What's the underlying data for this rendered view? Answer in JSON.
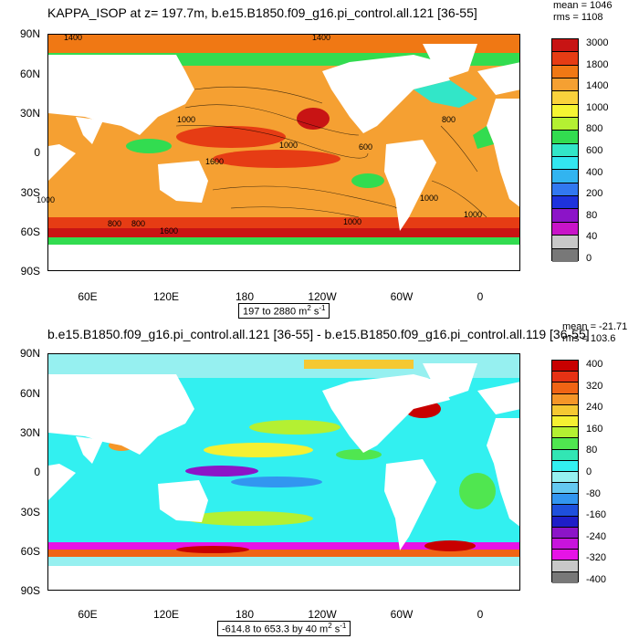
{
  "panel1": {
    "title": "KAPPA_ISOP at z= 197.7m, b.e15.B1850.f09_g16.pi_control.all.121 [36-55]",
    "mean": "mean = 1046",
    "rms": "rms = 1108",
    "range_text": "197 to 2880 m",
    "range_unit_sup": "2",
    "range_unit_tail": " s",
    "range_unit_sup2": "-1",
    "contour_labels": [
      "1400",
      "1400",
      "1000",
      "800",
      "1600",
      "1000",
      "800",
      "600",
      "1000",
      "1000",
      "800",
      "1600",
      "1000",
      "1000"
    ],
    "colorbar_labels": [
      "3000",
      "1800",
      "1400",
      "1000",
      "800",
      "600",
      "400",
      "200",
      "80",
      "40",
      "0"
    ],
    "colorbar_colors": [
      "#c81414",
      "#e63c14",
      "#f07814",
      "#f5a032",
      "#fad23c",
      "#f5f532",
      "#b4f032",
      "#32dc50",
      "#32e6c8",
      "#32e6f0",
      "#32b4f0",
      "#3278f0",
      "#1e32dc",
      "#8c14c8",
      "#c814c8",
      "#c8c8c8",
      "#787878"
    ]
  },
  "panel2": {
    "title": "b.e15.B1850.f09_g16.pi_control.all.121 [36-55] - b.e15.B1850.f09_g16.pi_control.all.119 [36-55]",
    "mean": "mean = -21.71",
    "rms": "rms = 103.6",
    "range_text": "-614.8 to 653.3 by 40 m",
    "range_unit_sup": "2",
    "range_unit_tail": " s",
    "range_unit_sup2": "-1",
    "colorbar_labels": [
      "400",
      "320",
      "240",
      "160",
      "80",
      "0",
      "-80",
      "-160",
      "-240",
      "-320",
      "-400"
    ],
    "colorbar_colors": [
      "#c80000",
      "#e63214",
      "#f06414",
      "#f59628",
      "#f5c832",
      "#f5f032",
      "#b4f032",
      "#50e650",
      "#32e6b4",
      "#32f0f0",
      "#96f0f0",
      "#64c8f0",
      "#3296f0",
      "#1e50dc",
      "#1e1ec8",
      "#8c14c8",
      "#c814dc",
      "#e614e6",
      "#c8c8c8",
      "#787878"
    ]
  },
  "axes": {
    "y_labels": [
      "90N",
      "60N",
      "30N",
      "0",
      "30S",
      "60S",
      "90S"
    ],
    "x_labels": [
      "60E",
      "120E",
      "180",
      "120W",
      "60W",
      "0"
    ]
  }
}
